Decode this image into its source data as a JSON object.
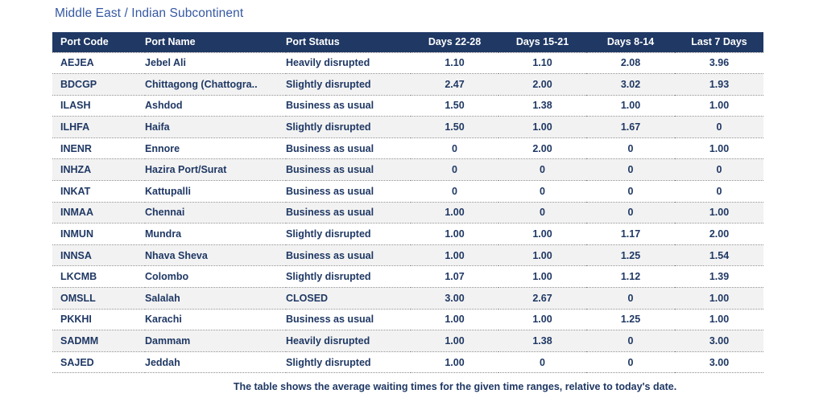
{
  "title": "Middle East / Indian Subcontinent",
  "footer": "The table shows the average waiting times for the given time ranges, relative to today's date.",
  "colors": {
    "header_bg": "#1F3864",
    "header_text": "#FFFFFF",
    "title_text": "#3558A2",
    "data_text": "#1F3864",
    "alt_row_bg": "#F2F2F2",
    "divider": "#8C8C8C"
  },
  "chart_data": {
    "type": "table",
    "title": "Middle East / Indian Subcontinent",
    "caption": "The table shows the average waiting times for the given time ranges, relative to today's date.",
    "columns": [
      "Port Code",
      "Port Name",
      "Port Status",
      "Days 22-28",
      "Days 15-21",
      "Days 8-14",
      "Last 7 Days"
    ],
    "rows": [
      [
        "AEJEA",
        "Jebel Ali",
        "Heavily disrupted",
        "1.10",
        "1.10",
        "2.08",
        "3.96"
      ],
      [
        "BDCGP",
        "Chittagong (Chattogra..",
        "Slightly disrupted",
        "2.47",
        "2.00",
        "3.02",
        "1.93"
      ],
      [
        "ILASH",
        "Ashdod",
        "Business as usual",
        "1.50",
        "1.38",
        "1.00",
        "1.00"
      ],
      [
        "ILHFA",
        "Haifa",
        "Slightly disrupted",
        "1.50",
        "1.00",
        "1.67",
        "0"
      ],
      [
        "INENR",
        "Ennore",
        "Business as usual",
        "0",
        "2.00",
        "0",
        "1.00"
      ],
      [
        "INHZA",
        "Hazira Port/Surat",
        "Business as usual",
        "0",
        "0",
        "0",
        "0"
      ],
      [
        "INKAT",
        "Kattupalli",
        "Business as usual",
        "0",
        "0",
        "0",
        "0"
      ],
      [
        "INMAA",
        "Chennai",
        "Business as usual",
        "1.00",
        "0",
        "0",
        "1.00"
      ],
      [
        "INMUN",
        "Mundra",
        "Slightly disrupted",
        "1.00",
        "1.00",
        "1.17",
        "2.00"
      ],
      [
        "INNSA",
        "Nhava Sheva",
        "Business as usual",
        "1.00",
        "1.00",
        "1.25",
        "1.54"
      ],
      [
        "LKCMB",
        "Colombo",
        "Slightly disrupted",
        "1.07",
        "1.00",
        "1.12",
        "1.39"
      ],
      [
        "OMSLL",
        "Salalah",
        "CLOSED",
        "3.00",
        "2.67",
        "0",
        "1.00"
      ],
      [
        "PKKHI",
        "Karachi",
        "Business as usual",
        "1.00",
        "1.00",
        "1.25",
        "1.00"
      ],
      [
        "SADMM",
        "Dammam",
        "Heavily disrupted",
        "1.00",
        "1.38",
        "0",
        "3.00"
      ],
      [
        "SAJED",
        "Jeddah",
        "Slightly disrupted",
        "1.00",
        "0",
        "0",
        "3.00"
      ]
    ]
  }
}
